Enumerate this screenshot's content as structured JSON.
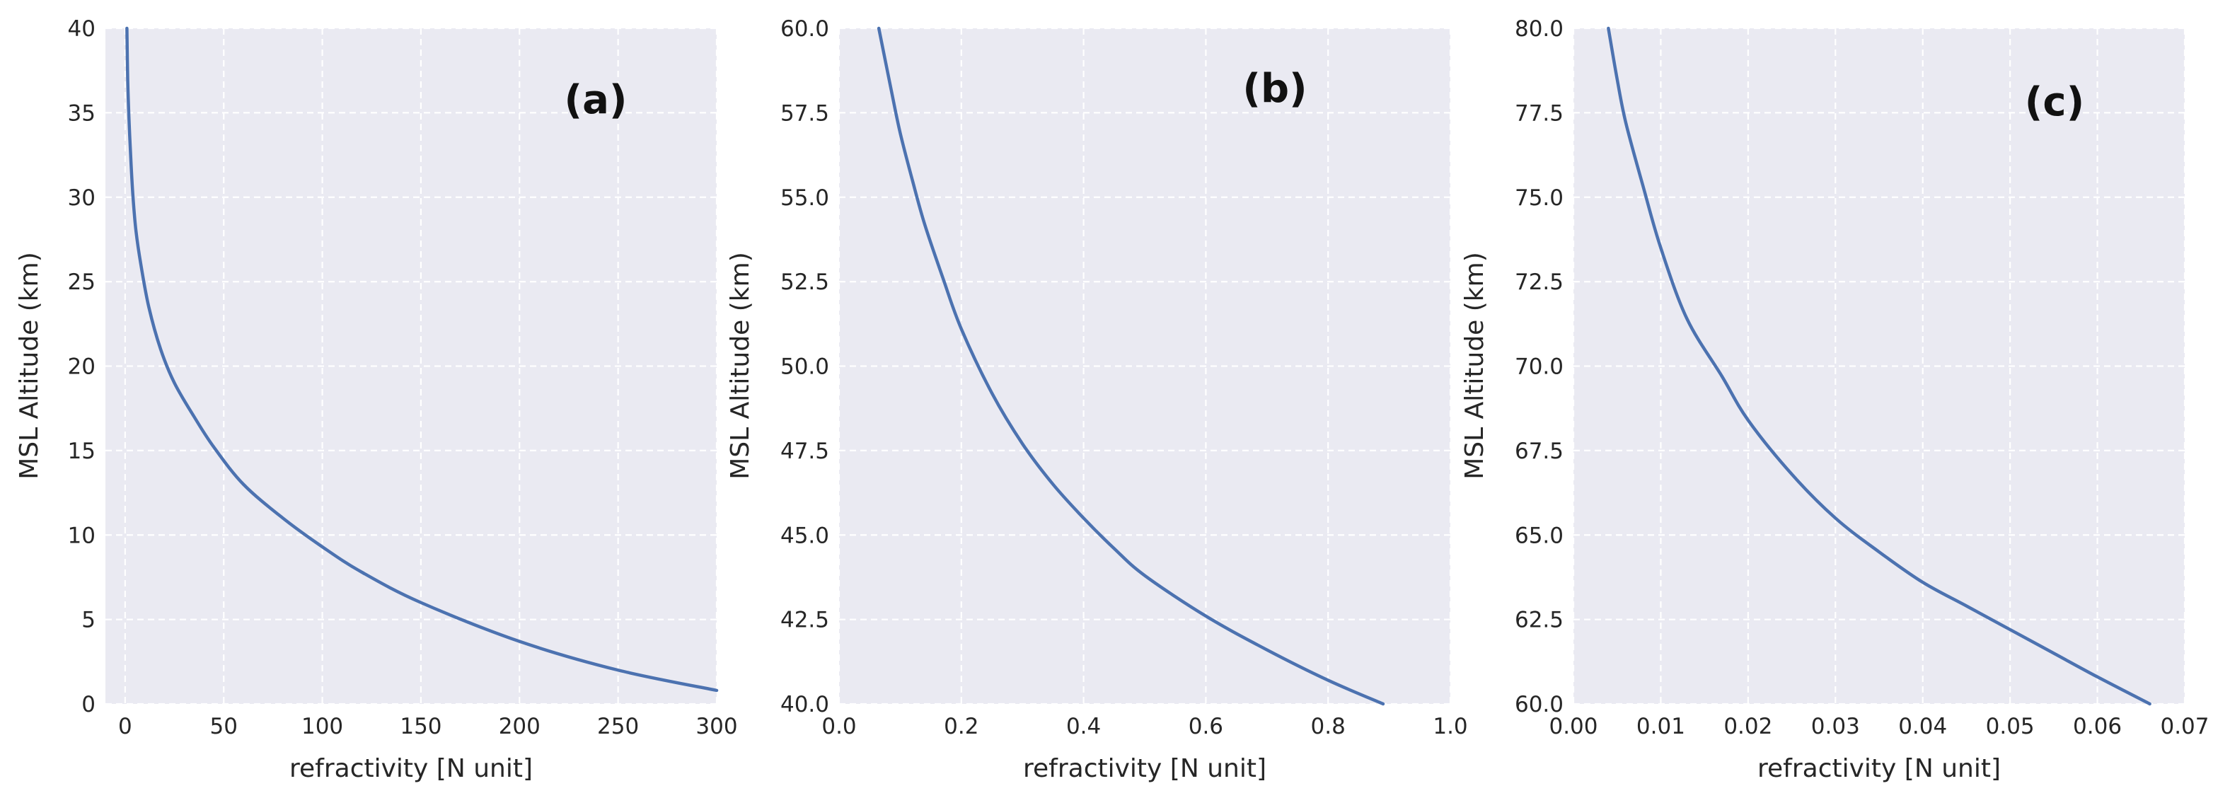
{
  "chart_data": [
    {
      "type": "line",
      "panel_label": "(a)",
      "xlabel": "refractivity [N unit]",
      "ylabel": "MSL Altitude (km)",
      "xlim": [
        -10,
        300
      ],
      "ylim": [
        0,
        40
      ],
      "xticks": [
        0,
        50,
        100,
        150,
        200,
        250,
        300
      ],
      "xtick_labels": [
        "0",
        "50",
        "100",
        "150",
        "200",
        "250",
        "300"
      ],
      "yticks": [
        0,
        5,
        10,
        15,
        20,
        25,
        30,
        35,
        40
      ],
      "ytick_labels": [
        "0",
        "5",
        "10",
        "15",
        "20",
        "25",
        "30",
        "35",
        "40"
      ],
      "grid": true,
      "series": [
        {
          "name": "refractivity",
          "x": [
            300,
            250,
            200,
            150,
            120,
            100,
            80,
            60,
            45,
            35,
            25,
            18,
            12,
            8,
            5.5,
            4,
            3,
            2,
            1.3,
            0.9
          ],
          "y": [
            0.8,
            2.0,
            3.7,
            6.0,
            7.8,
            9.3,
            11.0,
            13.0,
            15.2,
            17.0,
            19.0,
            21.0,
            23.5,
            26.0,
            28.0,
            30.0,
            32.0,
            34.5,
            37.0,
            40.0
          ]
        }
      ]
    },
    {
      "type": "line",
      "panel_label": "(b)",
      "xlabel": "refractivity [N unit]",
      "ylabel": "MSL Altitude (km)",
      "xlim": [
        0.0,
        1.0
      ],
      "ylim": [
        40.0,
        60.0
      ],
      "xticks": [
        0.0,
        0.2,
        0.4,
        0.6,
        0.8,
        1.0
      ],
      "xtick_labels": [
        "0.0",
        "0.2",
        "0.4",
        "0.6",
        "0.8",
        "1.0"
      ],
      "yticks": [
        40.0,
        42.5,
        45.0,
        47.5,
        50.0,
        52.5,
        55.0,
        57.5,
        60.0
      ],
      "ytick_labels": [
        "40.0",
        "42.5",
        "45.0",
        "47.5",
        "50.0",
        "52.5",
        "55.0",
        "57.5",
        "60.0"
      ],
      "grid": true,
      "series": [
        {
          "name": "refractivity",
          "x": [
            0.89,
            0.8,
            0.7,
            0.6,
            0.5,
            0.45,
            0.4,
            0.35,
            0.3,
            0.25,
            0.2,
            0.17,
            0.14,
            0.12,
            0.1,
            0.085,
            0.065
          ],
          "y": [
            40.0,
            40.7,
            41.6,
            42.6,
            43.8,
            44.6,
            45.5,
            46.5,
            47.7,
            49.2,
            51.1,
            52.6,
            54.2,
            55.5,
            56.9,
            58.2,
            60.0
          ]
        }
      ]
    },
    {
      "type": "line",
      "panel_label": "(c)",
      "xlabel": "refractivity [N unit]",
      "ylabel": "MSL Altitude (km)",
      "xlim": [
        0.0,
        0.07
      ],
      "ylim": [
        60.0,
        80.0
      ],
      "xticks": [
        0.0,
        0.01,
        0.02,
        0.03,
        0.04,
        0.05,
        0.06,
        0.07
      ],
      "xtick_labels": [
        "0.00",
        "0.01",
        "0.02",
        "0.03",
        "0.04",
        "0.05",
        "0.06",
        "0.07"
      ],
      "yticks": [
        60.0,
        62.5,
        65.0,
        67.5,
        70.0,
        72.5,
        75.0,
        77.5,
        80.0
      ],
      "ytick_labels": [
        "60.0",
        "62.5",
        "65.0",
        "67.5",
        "70.0",
        "72.5",
        "75.0",
        "77.5",
        "80.0"
      ],
      "grid": true,
      "series": [
        {
          "name": "refractivity",
          "x": [
            0.066,
            0.06,
            0.055,
            0.05,
            0.045,
            0.04,
            0.035,
            0.03,
            0.025,
            0.02,
            0.017,
            0.013,
            0.01,
            0.008,
            0.006,
            0.005,
            0.004
          ],
          "y": [
            60.0,
            60.8,
            61.5,
            62.2,
            62.9,
            63.6,
            64.5,
            65.5,
            66.8,
            68.4,
            69.7,
            71.4,
            73.5,
            75.3,
            77.2,
            78.5,
            80.0
          ]
        }
      ]
    }
  ],
  "colors": {
    "plot_background": "#eaeaf2",
    "grid": "#ffffff",
    "line": "#4c72b0",
    "text": "#262626"
  }
}
